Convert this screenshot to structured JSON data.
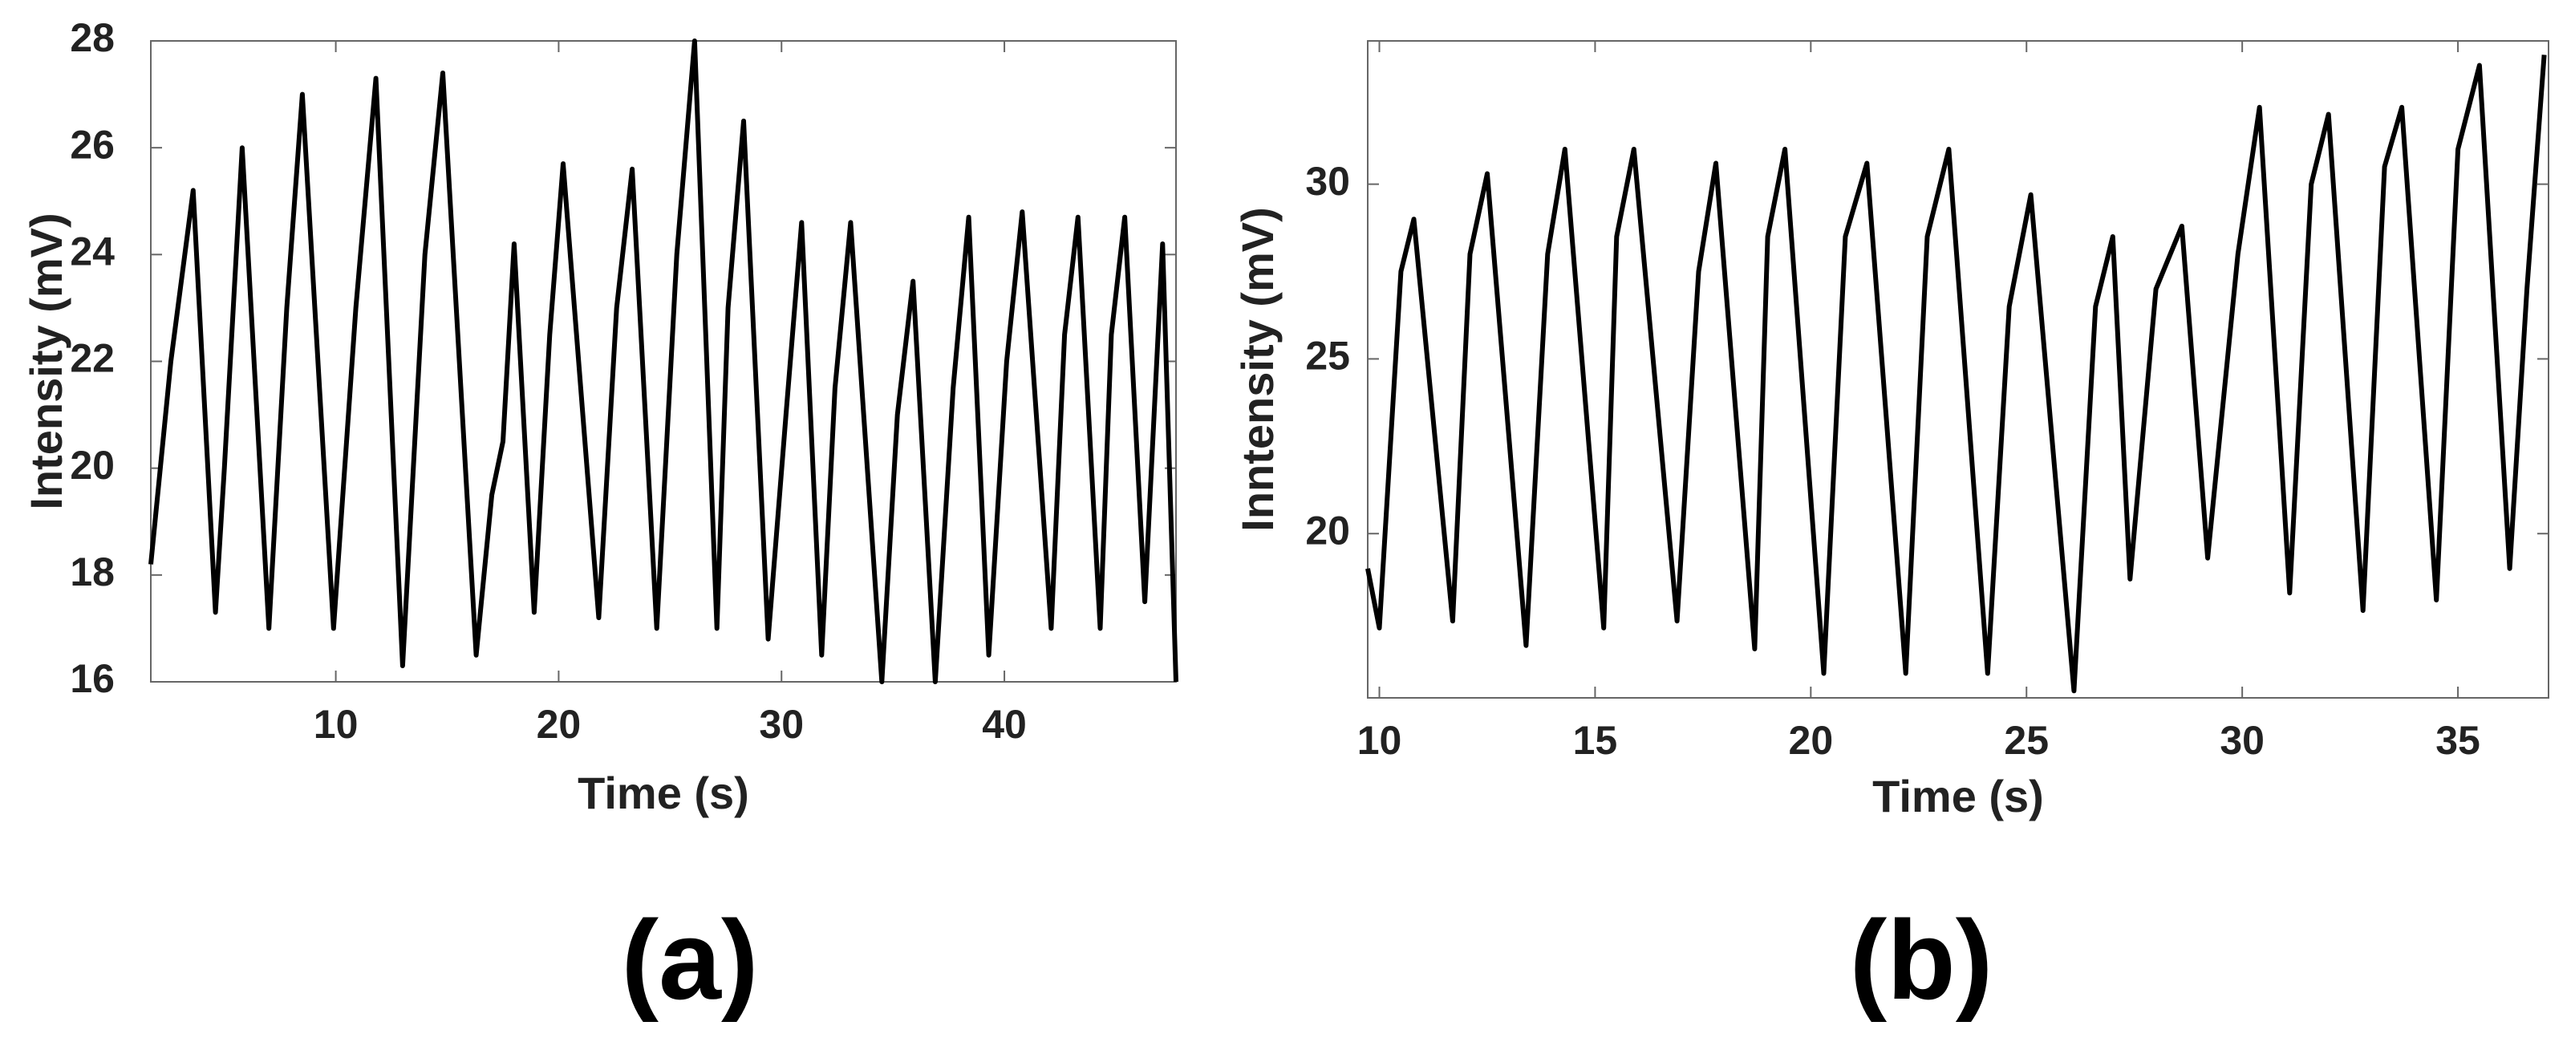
{
  "chart_data": [
    {
      "type": "line",
      "label": "(a)",
      "xlabel": "Time (s)",
      "ylabel": "Intensity (mV)",
      "color": "#000000",
      "xlim": [
        1.7,
        47.7
      ],
      "ylim": [
        16,
        28
      ],
      "xticks": [
        10,
        20,
        30,
        40
      ],
      "yticks": [
        16,
        18,
        20,
        22,
        24,
        26,
        28
      ],
      "x": [
        1.7,
        2.6,
        3.6,
        4.6,
        5.0,
        5.8,
        7.0,
        7.8,
        8.5,
        9.9,
        10.9,
        11.8,
        13.0,
        14.0,
        14.8,
        16.3,
        17.0,
        17.5,
        18.0,
        18.9,
        19.6,
        20.2,
        21.8,
        22.6,
        23.3,
        24.4,
        25.3,
        26.1,
        27.1,
        27.6,
        28.3,
        29.4,
        30.2,
        30.9,
        31.8,
        32.4,
        33.1,
        34.5,
        35.2,
        35.9,
        36.9,
        37.7,
        38.4,
        39.3,
        40.1,
        40.8,
        42.1,
        42.7,
        43.3,
        44.3,
        44.8,
        45.4,
        46.3,
        47.1,
        47.7
      ],
      "values": [
        18.2,
        22,
        25.2,
        17.3,
        20,
        26,
        17,
        23,
        27,
        17,
        23,
        27.3,
        16.3,
        24,
        27.4,
        16.5,
        19.5,
        20.5,
        24.2,
        17.3,
        22.5,
        25.7,
        17.2,
        23,
        25.6,
        17,
        24,
        28,
        17,
        23,
        26.5,
        16.8,
        21,
        24.6,
        16.5,
        21.5,
        24.6,
        16,
        21,
        23.5,
        16,
        21.5,
        24.7,
        16.5,
        22,
        24.8,
        17,
        22.5,
        24.7,
        17,
        22.5,
        24.7,
        17.5,
        24.2,
        16
      ]
    },
    {
      "type": "line",
      "label": "(b)",
      "xlabel": "Time (s)",
      "ylabel": "Inntensity (mV)",
      "color": "#000000",
      "xlim": [
        9.73,
        37.1
      ],
      "ylim": [
        15.3,
        34.1
      ],
      "xticks": [
        10,
        15,
        20,
        25,
        30,
        35
      ],
      "yticks": [
        20,
        25,
        30
      ],
      "x": [
        9.73,
        10.0,
        10.5,
        10.8,
        11.7,
        12.1,
        12.5,
        13.4,
        13.9,
        14.3,
        15.2,
        15.5,
        15.9,
        16.9,
        17.4,
        17.8,
        18.7,
        19.0,
        19.4,
        20.3,
        20.8,
        21.3,
        22.2,
        22.7,
        23.2,
        24.1,
        24.6,
        25.1,
        26.1,
        26.6,
        27.0,
        27.4,
        28.0,
        28.6,
        29.2,
        29.9,
        30.4,
        31.1,
        31.6,
        32.0,
        32.8,
        33.3,
        33.7,
        34.5,
        35.0,
        35.5,
        36.2,
        36.6,
        37.0
      ],
      "values": [
        19,
        17.3,
        27.5,
        29,
        17.5,
        28,
        30.3,
        16.8,
        28,
        31,
        17.3,
        28.5,
        31,
        17.5,
        27.5,
        30.6,
        16.7,
        28.5,
        31,
        16,
        28.5,
        30.6,
        16,
        28.5,
        31,
        16,
        26.5,
        29.7,
        15.5,
        26.5,
        28.5,
        18.7,
        27,
        28.8,
        19.3,
        28,
        32.2,
        18.3,
        30,
        32,
        17.8,
        30.5,
        32.2,
        18.1,
        31,
        33.4,
        19,
        27,
        33.7
      ]
    }
  ]
}
